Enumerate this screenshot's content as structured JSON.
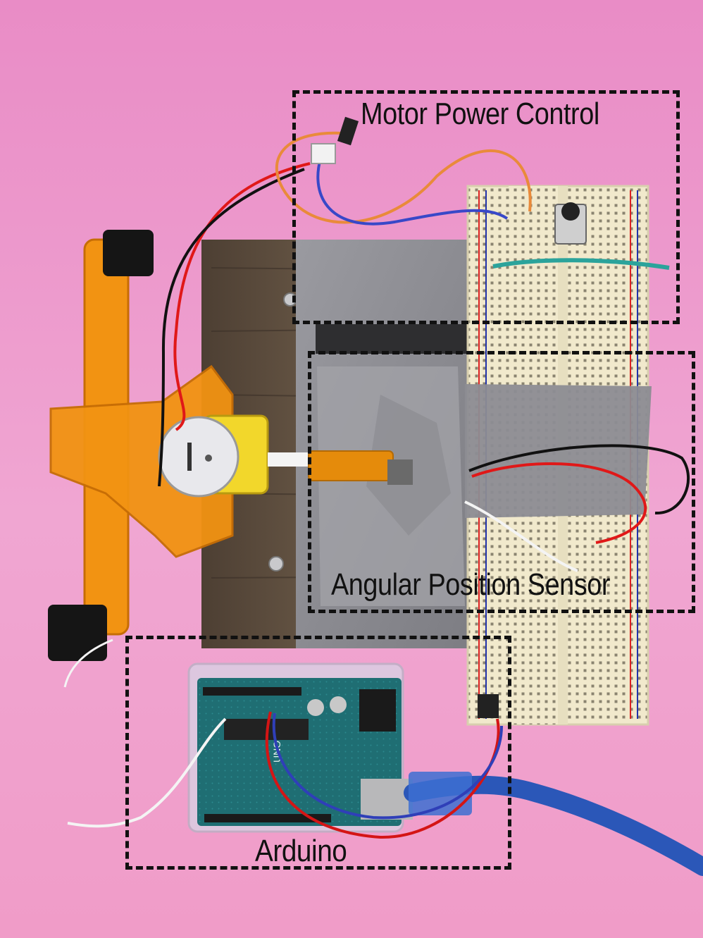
{
  "callouts": {
    "motor_power_control": "Motor Power Control",
    "angular_position_sensor": "Angular Position Sensor",
    "arduino": "Arduino"
  },
  "colors": {
    "background": "#e98cc6",
    "wood": "#5a4a3c",
    "duct_tape": "#8d8d92",
    "breadboard": "#efe7c9",
    "frame_orange": "#f29312",
    "arduino_board": "#1f6e73",
    "usb_cable": "#2b57b8"
  }
}
